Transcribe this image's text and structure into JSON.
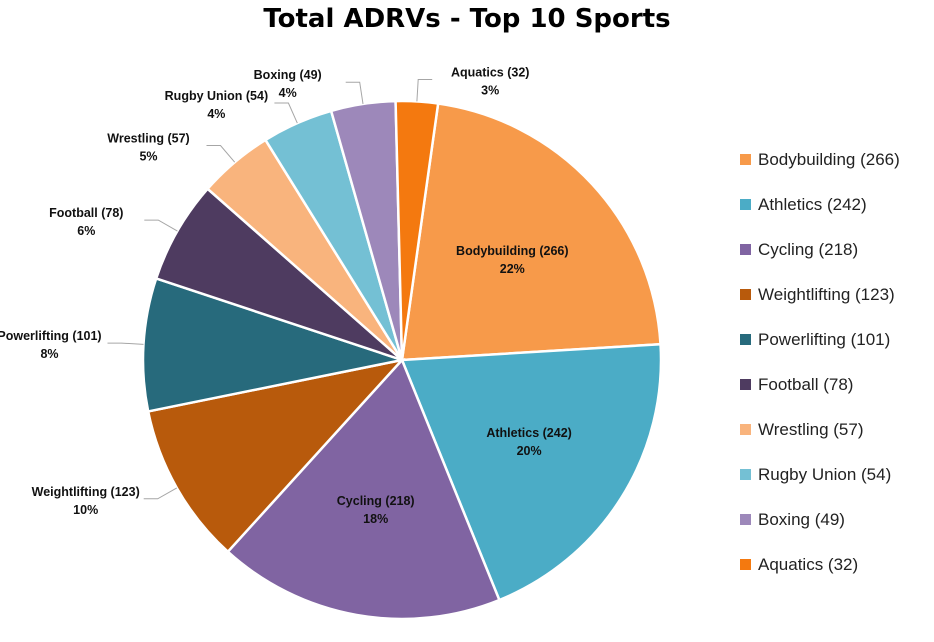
{
  "chart_data": {
    "type": "pie",
    "title": "Total ADRVs - Top 10 Sports",
    "legend_position": "right",
    "slices": [
      {
        "name": "Bodybuilding",
        "label": "Bodybuilding (266)",
        "value": 266,
        "percent": "22%",
        "color": "#F79A4A"
      },
      {
        "name": "Athletics",
        "label": "Athletics (242)",
        "value": 242,
        "percent": "20%",
        "color": "#4BACC6"
      },
      {
        "name": "Cycling",
        "label": "Cycling (218)",
        "value": 218,
        "percent": "18%",
        "color": "#8064A2"
      },
      {
        "name": "Weightlifting",
        "label": "Weightlifting (123)",
        "value": 123,
        "percent": "10%",
        "color": "#B85A0C"
      },
      {
        "name": "Powerlifting",
        "label": "Powerlifting (101)",
        "value": 101,
        "percent": "8%",
        "color": "#276A7C"
      },
      {
        "name": "Football",
        "label": "Football (78)",
        "value": 78,
        "percent": "6%",
        "color": "#4E3B60"
      },
      {
        "name": "Wrestling",
        "label": "Wrestling (57)",
        "value": 57,
        "percent": "5%",
        "color": "#F9B47D"
      },
      {
        "name": "Rugby Union",
        "label": "Rugby Union (54)",
        "value": 54,
        "percent": "4%",
        "color": "#74C0D4"
      },
      {
        "name": "Boxing",
        "label": "Boxing (49)",
        "value": 49,
        "percent": "4%",
        "color": "#9D88BA"
      },
      {
        "name": "Aquatics",
        "label": "Aquatics (32)",
        "value": 32,
        "percent": "3%",
        "color": "#F4790F"
      }
    ]
  }
}
